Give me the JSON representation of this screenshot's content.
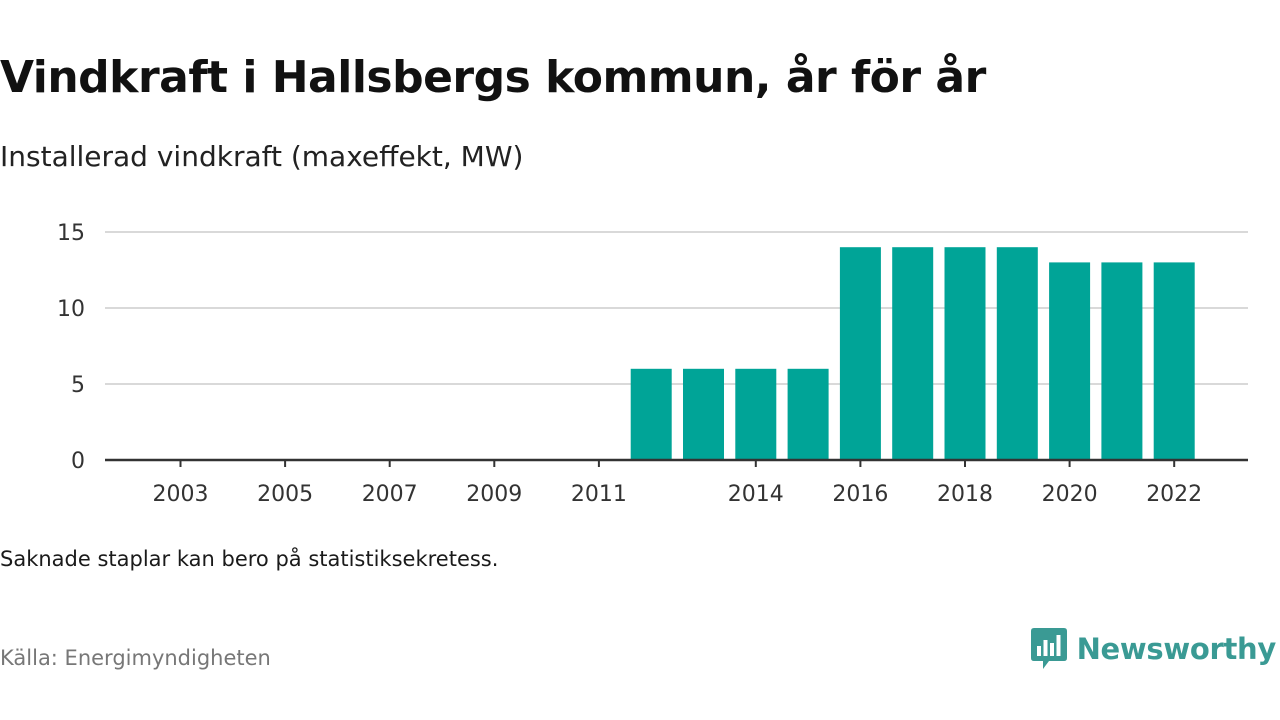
{
  "header": {
    "title": "Vindkraft i Hallsbergs kommun, år för år",
    "subtitle": "Installerad vindkraft (maxeffekt, MW)"
  },
  "footer": {
    "note": "Saknade staplar kan bero på statistiksekretess.",
    "source": "Källa: Energimyndigheten",
    "brand": "Newsworthy",
    "brand_icon": "bar-chart-speech-bubble-icon"
  },
  "colors": {
    "bar": "#00a497",
    "brand": "#3a9a94",
    "grid": "#d9d9d9",
    "axis": "#333333"
  },
  "chart_data": {
    "type": "bar",
    "categories": [
      "2003",
      "2004",
      "2005",
      "2006",
      "2007",
      "2008",
      "2009",
      "2010",
      "2011",
      "2012",
      "2013",
      "2014",
      "2015",
      "2016",
      "2017",
      "2018",
      "2019",
      "2020",
      "2021",
      "2022"
    ],
    "values": [
      null,
      null,
      null,
      null,
      null,
      null,
      null,
      null,
      null,
      6,
      6,
      6,
      6,
      14,
      14,
      14,
      14,
      13,
      13,
      13
    ],
    "x_tick_labels": [
      "2003",
      "2005",
      "2007",
      "2009",
      "2011",
      "2014",
      "2016",
      "2018",
      "2020",
      "2022"
    ],
    "y_ticks": [
      0,
      5,
      10,
      15
    ],
    "ylim": [
      0,
      15
    ],
    "grid": true,
    "legend": "none"
  }
}
